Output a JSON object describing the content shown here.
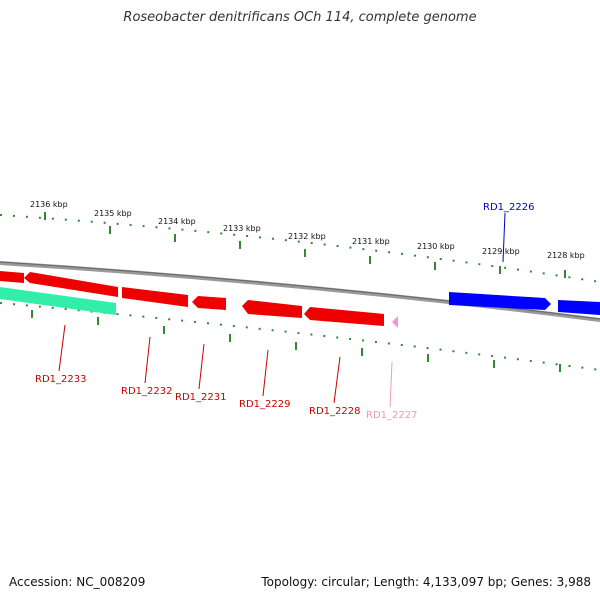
{
  "header": {
    "title": "Roseobacter denitrificans OCh 114, complete genome"
  },
  "footer": {
    "accession": "Accession: NC_008209",
    "summary": "Topology: circular; Length: 4,133,097 bp; Genes: 3,988"
  },
  "scale_ticks": [
    "2136 kbp",
    "2135 kbp",
    "2134 kbp",
    "2133 kbp",
    "2132 kbp",
    "2131 kbp",
    "2130 kbp",
    "2129 kbp",
    "2128 kbp"
  ],
  "gene_labels": [
    {
      "label": "RD1_2226",
      "color": "#0000cc"
    },
    {
      "label": "RD1_2227",
      "color": "#ee99bb"
    },
    {
      "label": "RD1_2228",
      "color": "#cc0000"
    },
    {
      "label": "RD1_2229",
      "color": "#cc0000"
    },
    {
      "label": "RD1_2231",
      "color": "#cc0000"
    },
    {
      "label": "RD1_2232",
      "color": "#cc0000"
    },
    {
      "label": "RD1_2233",
      "color": "#cc0000"
    }
  ],
  "colors": {
    "forward_gene": "#0000ff",
    "reverse_gene": "#ee0000",
    "reverse_gene_small": "#ee99cc",
    "rna_gene": "#33eeaa",
    "backbone": "#888888",
    "ticks": "#338833"
  }
}
